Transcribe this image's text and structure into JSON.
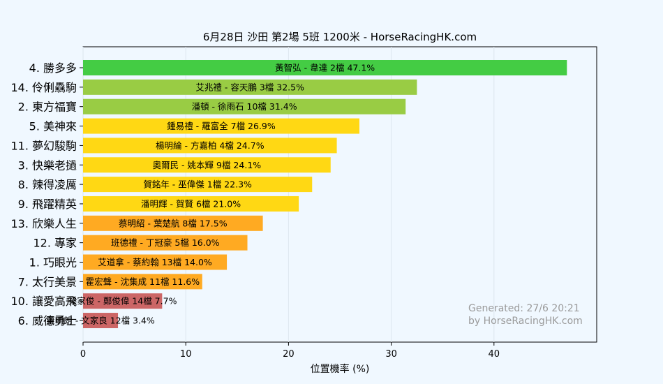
{
  "chart_data": {
    "type": "bar",
    "orientation": "horizontal",
    "title": "6月28日  沙田  第2場  5班  1200米 - HorseRacingHK.com",
    "xlabel": "位置機率 (%)",
    "ylabel": "",
    "xlim": [
      0,
      50
    ],
    "xticks": [
      0,
      10,
      20,
      30,
      40
    ],
    "grid": true,
    "watermark": [
      "Generated: 27/6 20:21",
      "by HorseRacingHK.com"
    ],
    "bars": [
      {
        "horse": "4. 勝多多",
        "label": "黃智弘 - 韋達 2檔",
        "value": 47.1,
        "value_label": "47.1%",
        "color": "#44cc44"
      },
      {
        "horse": "14. 伶俐驫駒",
        "label": "艾兆禮 - 容天鵬 3檔",
        "value": 32.5,
        "value_label": "32.5%",
        "color": "#99cc44"
      },
      {
        "horse": "2. 東方福寶",
        "label": "潘頓 - 徐雨石 10檔",
        "value": 31.4,
        "value_label": "31.4%",
        "color": "#99cc44"
      },
      {
        "horse": "5. 美神來",
        "label": "鍾易禮 - 羅富全 7檔",
        "value": 26.9,
        "value_label": "26.9%",
        "color": "#ffd814"
      },
      {
        "horse": "11. 夢幻駿駒",
        "label": "楊明綸 - 方嘉柏 4檔",
        "value": 24.7,
        "value_label": "24.7%",
        "color": "#ffd814"
      },
      {
        "horse": "3. 快樂老撾",
        "label": "奧爾民 - 姚本輝 9檔",
        "value": 24.1,
        "value_label": "24.1%",
        "color": "#ffd814"
      },
      {
        "horse": "8. 辣得凌厲",
        "label": "賀銘年 - 巫偉傑 1檔",
        "value": 22.3,
        "value_label": "22.3%",
        "color": "#ffd814"
      },
      {
        "horse": "9. 飛躍精英",
        "label": "潘明輝 - 賀賢 6檔",
        "value": 21.0,
        "value_label": "21.0%",
        "color": "#ffd814"
      },
      {
        "horse": "13. 欣樂人生",
        "label": "蔡明紹 - 葉楚航 8檔",
        "value": 17.5,
        "value_label": "17.5%",
        "color": "#ffaa22"
      },
      {
        "horse": "12. 專家",
        "label": "班德禮 - 丁冠豪 5檔",
        "value": 16.0,
        "value_label": "16.0%",
        "color": "#ffaa22"
      },
      {
        "horse": "1. 巧眼光",
        "label": "艾道拿 - 蔡約翰 13檔",
        "value": 14.0,
        "value_label": "14.0%",
        "color": "#ffaa22"
      },
      {
        "horse": "7. 太行美景",
        "label": "霍宏聲 - 沈集成 11檔",
        "value": 11.6,
        "value_label": "11.6%",
        "color": "#ffaa22"
      },
      {
        "horse": "10. 讓愛高飛",
        "label": "梁家俊 - 鄭俊偉 14檔",
        "value": 7.7,
        "value_label": "7.7%",
        "color": "#cc6666"
      },
      {
        "horse": "6. 威德勇士",
        "label": "董明朗 - 文家良 12檔",
        "value": 3.4,
        "value_label": "3.4%",
        "color": "#cc6666"
      }
    ]
  }
}
